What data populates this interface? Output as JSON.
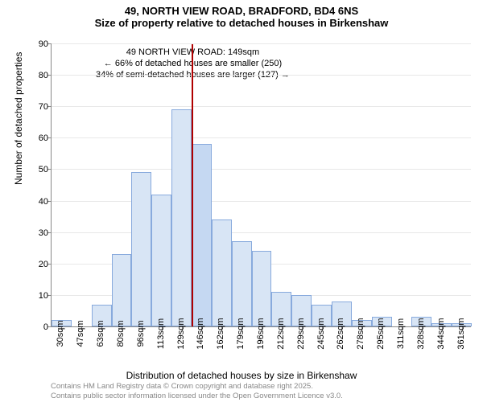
{
  "title_line1": "49, NORTH VIEW ROAD, BRADFORD, BD4 6NS",
  "title_line2": "Size of property relative to detached houses in Birkenshaw",
  "chart": {
    "type": "histogram",
    "xlabel": "Distribution of detached houses by size in Birkenshaw",
    "ylabel": "Number of detached properties",
    "ylim": [
      0,
      90
    ],
    "ytick_step": 10,
    "xtick_labels": [
      "30sqm",
      "47sqm",
      "63sqm",
      "80sqm",
      "96sqm",
      "113sqm",
      "129sqm",
      "146sqm",
      "162sqm",
      "179sqm",
      "196sqm",
      "212sqm",
      "229sqm",
      "245sqm",
      "262sqm",
      "278sqm",
      "295sqm",
      "311sqm",
      "328sqm",
      "344sqm",
      "361sqm"
    ],
    "bars": [
      {
        "value": 2,
        "color": "#d8e5f5"
      },
      {
        "value": 0,
        "color": "#d8e5f5"
      },
      {
        "value": 7,
        "color": "#d8e5f5"
      },
      {
        "value": 23,
        "color": "#d8e5f5"
      },
      {
        "value": 49,
        "color": "#d8e5f5"
      },
      {
        "value": 42,
        "color": "#d8e5f5"
      },
      {
        "value": 69,
        "color": "#d8e5f5"
      },
      {
        "value": 58,
        "color": "#c5d8f2"
      },
      {
        "value": 34,
        "color": "#d8e5f5"
      },
      {
        "value": 27,
        "color": "#d8e5f5"
      },
      {
        "value": 24,
        "color": "#d8e5f5"
      },
      {
        "value": 11,
        "color": "#d8e5f5"
      },
      {
        "value": 10,
        "color": "#d8e5f5"
      },
      {
        "value": 7,
        "color": "#d8e5f5"
      },
      {
        "value": 8,
        "color": "#d8e5f5"
      },
      {
        "value": 2,
        "color": "#d8e5f5"
      },
      {
        "value": 3,
        "color": "#d8e5f5"
      },
      {
        "value": 0,
        "color": "#d8e5f5"
      },
      {
        "value": 3,
        "color": "#d8e5f5"
      },
      {
        "value": 1,
        "color": "#d8e5f5"
      },
      {
        "value": 1,
        "color": "#d8e5f5"
      }
    ],
    "marker_bin_index": 7,
    "annotation": {
      "line1": "49 NORTH VIEW ROAD: 149sqm",
      "line2": "← 66% of detached houses are smaller (250)",
      "line3": "34% of semi-detached houses are larger (127) →"
    },
    "background_color": "#ffffff",
    "grid_color": "#e8e8e8",
    "axis_color": "#888888",
    "bar_border_color": "#88aadd",
    "marker_color": "#b00000"
  },
  "footer": {
    "line1": "Contains HM Land Registry data © Crown copyright and database right 2025.",
    "line2": "Contains public sector information licensed under the Open Government Licence v3.0."
  }
}
